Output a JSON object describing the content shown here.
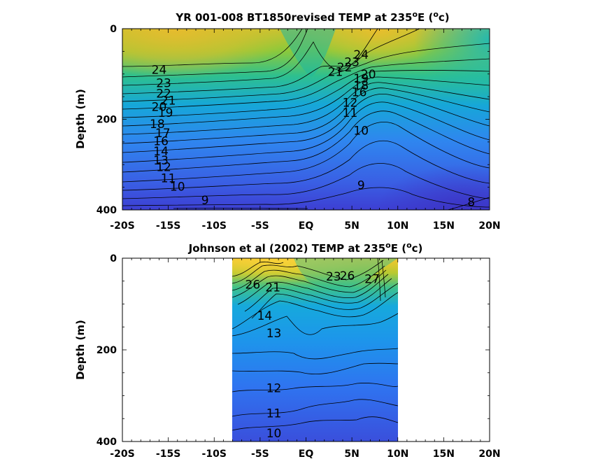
{
  "chart_data": [
    {
      "type": "heatmap",
      "title_prefix": "YR 001-008 BT1850revised TEMP at 235",
      "title_sup": "o",
      "title_mid": "E (",
      "title_sup2": "o",
      "title_end": "c)",
      "ylabel": "Depth (m)",
      "xlim": [
        "20S",
        "20N"
      ],
      "ylim": [
        0,
        400
      ],
      "x_tick_labels": [
        "-20S",
        "-15S",
        "-10S",
        "-5S",
        "EQ",
        "5N",
        "10N",
        "15N",
        "20N"
      ],
      "y_tick_labels": [
        "0",
        "200",
        "400"
      ],
      "data_extent": [
        "20S",
        "20N"
      ],
      "colormap": [
        "#3b2fc4",
        "#2f6ef2",
        "#19a7e0",
        "#26c1a0",
        "#8ec93a",
        "#e9bf2c",
        "#f7d93a"
      ],
      "contour_labels": [
        {
          "text": "24",
          "x": -16.0,
          "y": 90
        },
        {
          "text": "23",
          "x": -15.5,
          "y": 120
        },
        {
          "text": "22",
          "x": -15.5,
          "y": 143
        },
        {
          "text": "21",
          "x": -15.0,
          "y": 158
        },
        {
          "text": "20",
          "x": -16.0,
          "y": 172
        },
        {
          "text": "19",
          "x": -15.3,
          "y": 185
        },
        {
          "text": "18",
          "x": -16.2,
          "y": 210
        },
        {
          "text": "17",
          "x": -15.6,
          "y": 230
        },
        {
          "text": "16",
          "x": -15.8,
          "y": 248
        },
        {
          "text": "14",
          "x": -15.8,
          "y": 270
        },
        {
          "text": "13",
          "x": -15.8,
          "y": 290
        },
        {
          "text": "12",
          "x": -15.5,
          "y": 305
        },
        {
          "text": "11",
          "x": -15.0,
          "y": 330
        },
        {
          "text": "10",
          "x": -14.0,
          "y": 348
        },
        {
          "text": "9",
          "x": -11.0,
          "y": 378
        },
        {
          "text": "24",
          "x": 6.0,
          "y": 57
        },
        {
          "text": "23",
          "x": 5.0,
          "y": 73
        },
        {
          "text": "22",
          "x": 4.2,
          "y": 85
        },
        {
          "text": "21",
          "x": 3.2,
          "y": 95
        },
        {
          "text": "20",
          "x": 6.8,
          "y": 100
        },
        {
          "text": "19",
          "x": 6.0,
          "y": 110
        },
        {
          "text": "18",
          "x": 6.0,
          "y": 125
        },
        {
          "text": "16",
          "x": 5.8,
          "y": 140
        },
        {
          "text": "12",
          "x": 4.8,
          "y": 163
        },
        {
          "text": "11",
          "x": 4.8,
          "y": 185
        },
        {
          "text": "10",
          "x": 6.0,
          "y": 225
        },
        {
          "text": "9",
          "x": 6.0,
          "y": 345
        },
        {
          "text": "8",
          "x": 18.0,
          "y": 382
        }
      ]
    },
    {
      "type": "heatmap",
      "title_prefix": "Johnson et al (2002) TEMP at 235",
      "title_sup": "o",
      "title_mid": "E (",
      "title_sup2": "o",
      "title_end": "c)",
      "ylabel": "Depth (m)",
      "xlim": [
        "20S",
        "20N"
      ],
      "ylim": [
        0,
        400
      ],
      "x_tick_labels": [
        "-20S",
        "-15S",
        "-10S",
        "-5S",
        "EQ",
        "5N",
        "10N",
        "15N",
        "20N"
      ],
      "y_tick_labels": [
        "0",
        "200",
        "400"
      ],
      "data_extent": [
        "8S",
        "10N"
      ],
      "colormap": [
        "#3b2fc4",
        "#2f6ef2",
        "#19a7e0",
        "#26c1a0",
        "#8ec93a",
        "#e9bf2c",
        "#f7d93a"
      ],
      "contour_labels": [
        {
          "text": "26",
          "x": -5.8,
          "y": 57
        },
        {
          "text": "21",
          "x": -3.6,
          "y": 63
        },
        {
          "text": "14",
          "x": -4.5,
          "y": 125
        },
        {
          "text": "13",
          "x": -3.5,
          "y": 163
        },
        {
          "text": "12",
          "x": -3.5,
          "y": 283
        },
        {
          "text": "11",
          "x": -3.5,
          "y": 338
        },
        {
          "text": "10",
          "x": -3.5,
          "y": 382
        },
        {
          "text": "23",
          "x": 3.0,
          "y": 40
        },
        {
          "text": "26",
          "x": 4.5,
          "y": 38
        },
        {
          "text": "27",
          "x": 7.2,
          "y": 45
        }
      ]
    }
  ]
}
